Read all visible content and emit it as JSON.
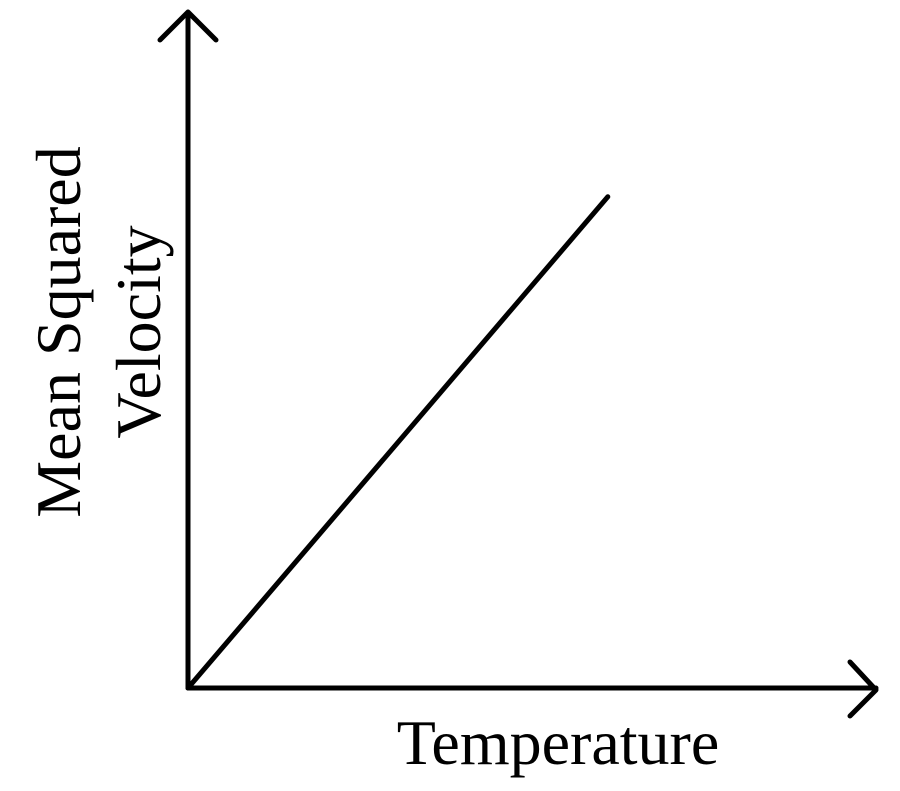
{
  "chart_data": {
    "type": "line",
    "xlabel": "Temperature",
    "ylabel_lines": [
      "Mean Squared",
      "Velocity"
    ],
    "xlim": [
      0,
      1
    ],
    "ylim": [
      0,
      1
    ],
    "grid": false,
    "series": [
      {
        "x": [
          0,
          0.66
        ],
        "y": [
          0,
          0.75
        ]
      }
    ],
    "colors": {
      "line": "#000000",
      "axes": "#000000",
      "background": "#ffffff"
    }
  }
}
